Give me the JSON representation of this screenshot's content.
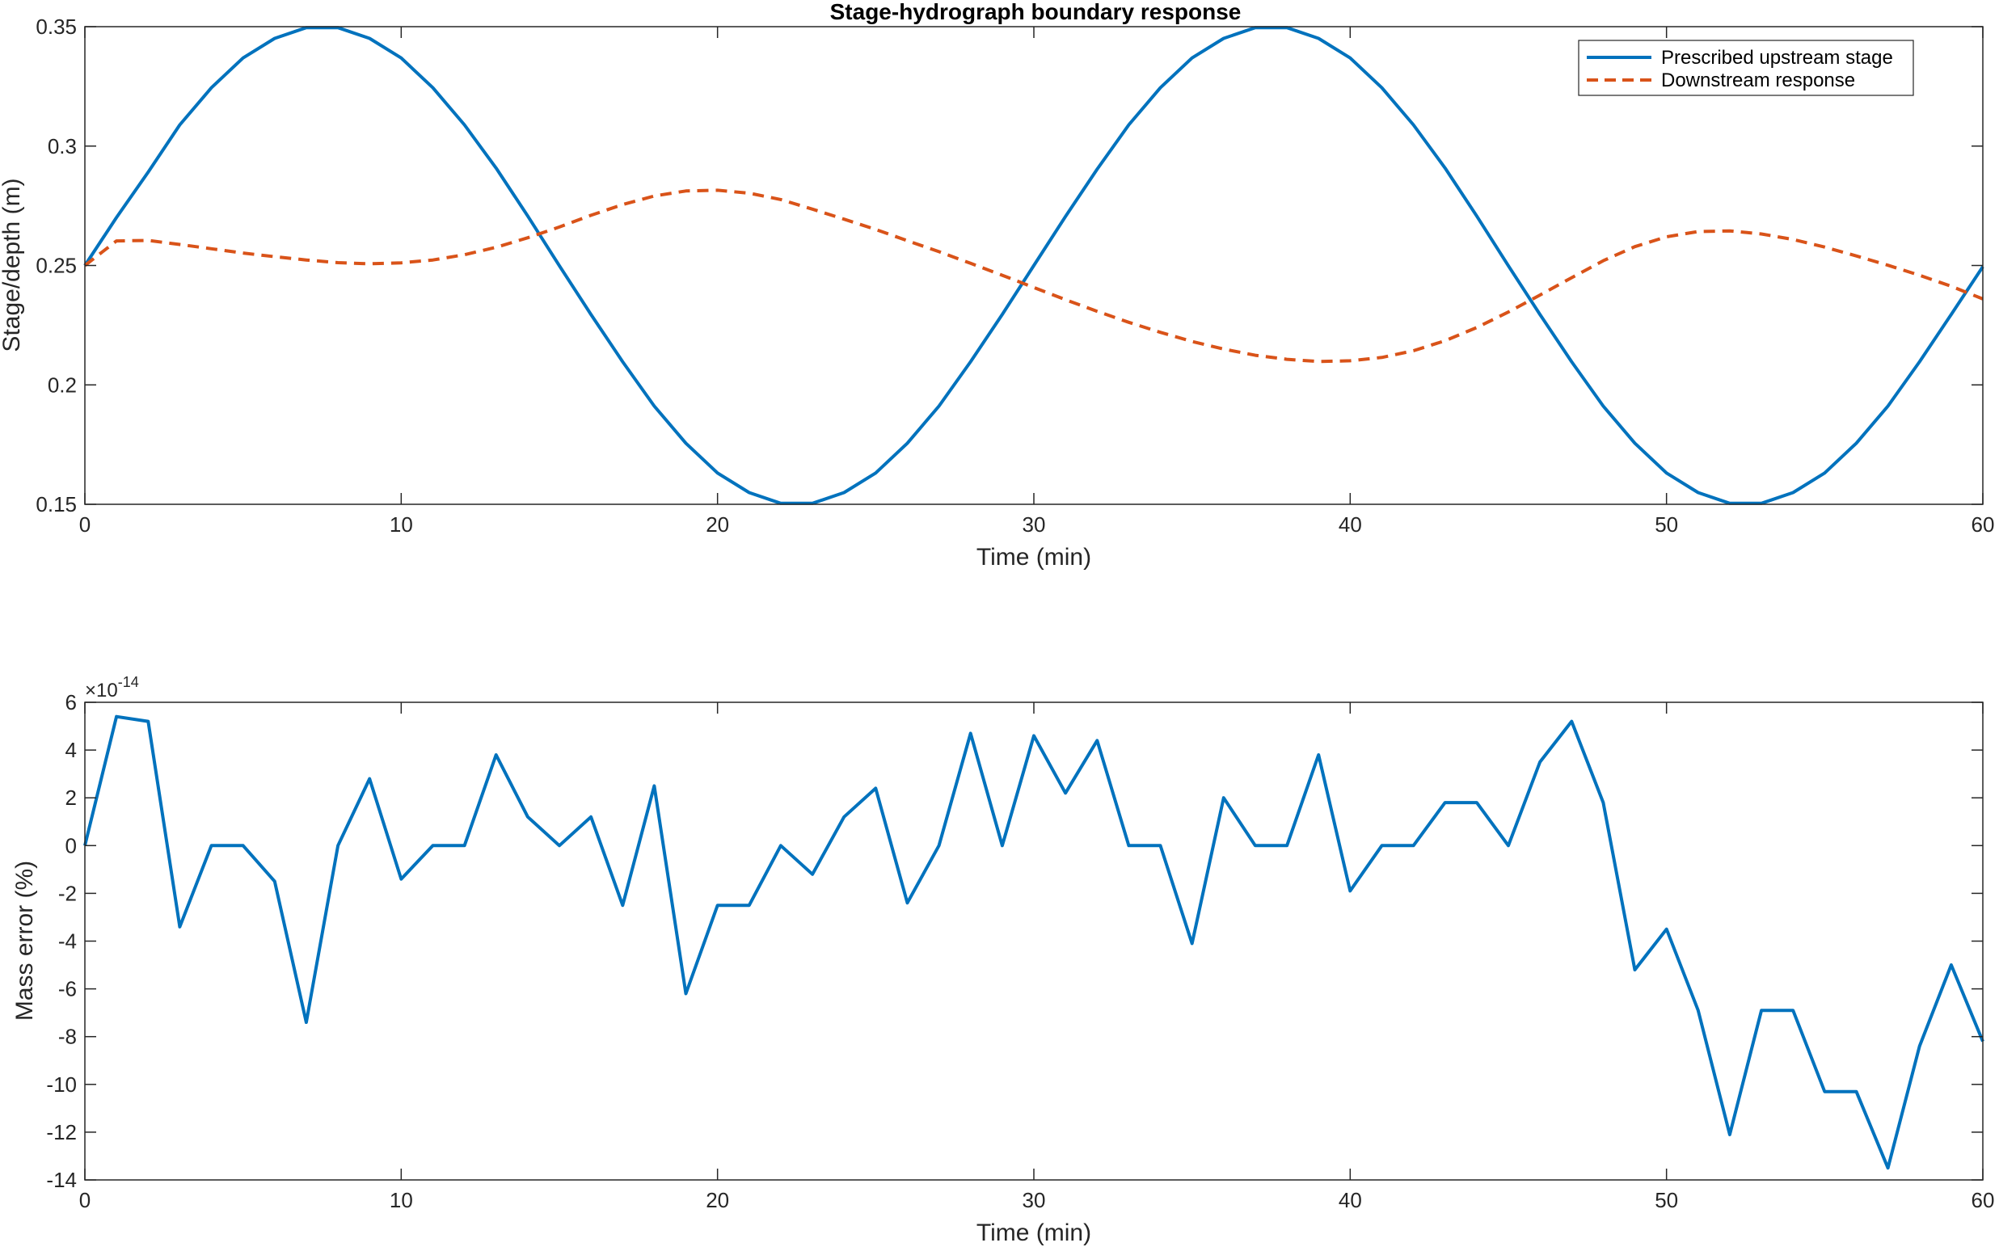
{
  "chart_data": [
    {
      "type": "line",
      "title": "Stage-hydrograph boundary response",
      "xlabel": "Time (min)",
      "ylabel": "Stage/depth (m)",
      "xlim": [
        0,
        60
      ],
      "ylim": [
        0.15,
        0.35
      ],
      "xticks": [
        "0",
        "10",
        "20",
        "30",
        "40",
        "50",
        "60"
      ],
      "yticks": [
        "0.15",
        "0.2",
        "0.25",
        "0.3",
        "0.35"
      ],
      "grid": false,
      "legend_position": "top-right",
      "x": [
        0,
        1,
        2,
        3,
        4,
        5,
        6,
        7,
        8,
        9,
        10,
        11,
        12,
        13,
        14,
        15,
        16,
        17,
        18,
        19,
        20,
        21,
        22,
        23,
        24,
        25,
        26,
        27,
        28,
        29,
        30,
        31,
        32,
        33,
        34,
        35,
        36,
        37,
        38,
        39,
        40,
        41,
        42,
        43,
        44,
        45,
        46,
        47,
        48,
        49,
        50,
        51,
        52,
        53,
        54,
        55,
        56,
        57,
        58,
        59,
        60
      ],
      "series": [
        {
          "name": "Prescribed upstream stage",
          "color": "#0072BD",
          "style": "solid",
          "values": [
            0.25,
            0.2701,
            0.2891,
            0.3089,
            0.3244,
            0.3369,
            0.3451,
            0.3496,
            0.3496,
            0.3451,
            0.3369,
            0.3244,
            0.3089,
            0.2908,
            0.2707,
            0.2499,
            0.2295,
            0.2097,
            0.1911,
            0.1756,
            0.1631,
            0.1549,
            0.1504,
            0.1504,
            0.1549,
            0.1631,
            0.1756,
            0.1911,
            0.2097,
            0.2295,
            0.25,
            0.2705,
            0.2903,
            0.3089,
            0.3244,
            0.3369,
            0.3451,
            0.3496,
            0.3496,
            0.3451,
            0.3369,
            0.3244,
            0.3089,
            0.2908,
            0.2707,
            0.2499,
            0.2295,
            0.2097,
            0.1911,
            0.1756,
            0.1631,
            0.1549,
            0.1504,
            0.1504,
            0.1549,
            0.1631,
            0.1756,
            0.1911,
            0.2097,
            0.2295,
            0.2495
          ]
        },
        {
          "name": "Downstream response",
          "color": "#D95319",
          "style": "dashed",
          "values": [
            0.25,
            0.2603,
            0.2605,
            0.2588,
            0.257,
            0.2552,
            0.2537,
            0.2523,
            0.2512,
            0.2507,
            0.2511,
            0.2523,
            0.2545,
            0.2576,
            0.2616,
            0.2661,
            0.271,
            0.2755,
            0.2791,
            0.2812,
            0.2815,
            0.2803,
            0.2776,
            0.2736,
            0.2694,
            0.2651,
            0.2604,
            0.2558,
            0.2509,
            0.2459,
            0.2408,
            0.2357,
            0.2308,
            0.2262,
            0.222,
            0.2182,
            0.215,
            0.2124,
            0.2107,
            0.2098,
            0.2101,
            0.2115,
            0.2143,
            0.2185,
            0.224,
            0.2305,
            0.2376,
            0.2449,
            0.252,
            0.2579,
            0.262,
            0.2642,
            0.2645,
            0.2632,
            0.2609,
            0.2577,
            0.254,
            0.2501,
            0.2459,
            0.2413,
            0.236
          ]
        }
      ]
    },
    {
      "type": "line",
      "title": "",
      "xlabel": "Time (min)",
      "ylabel": "Mass error (%)",
      "xlim": [
        0,
        60
      ],
      "ylim": [
        -14,
        6
      ],
      "y_scale_label": "×10",
      "y_scale_exponent": "-14",
      "xticks": [
        "0",
        "10",
        "20",
        "30",
        "40",
        "50",
        "60"
      ],
      "yticks": [
        "-14",
        "-12",
        "-10",
        "-8",
        "-6",
        "-4",
        "-2",
        "0",
        "2",
        "4",
        "6"
      ],
      "grid": false,
      "x": [
        0,
        1,
        2,
        3,
        4,
        5,
        6,
        7,
        8,
        9,
        10,
        11,
        12,
        13,
        14,
        15,
        16,
        17,
        18,
        19,
        20,
        21,
        22,
        23,
        24,
        25,
        26,
        27,
        28,
        29,
        30,
        31,
        32,
        33,
        34,
        35,
        36,
        37,
        38,
        39,
        40,
        41,
        42,
        43,
        44,
        45,
        46,
        47,
        48,
        49,
        50,
        51,
        52,
        53,
        54,
        55,
        56,
        57,
        58,
        59,
        60
      ],
      "series": [
        {
          "color": "#0072BD",
          "style": "solid",
          "values": [
            0,
            5.4,
            5.2,
            -3.4,
            0,
            0,
            -1.5,
            -7.4,
            0,
            2.8,
            -1.4,
            0,
            0,
            3.8,
            1.2,
            0,
            1.2,
            -2.5,
            2.5,
            -6.2,
            -2.5,
            -2.5,
            0,
            -1.2,
            1.2,
            2.4,
            -2.4,
            0,
            4.7,
            0,
            4.6,
            2.2,
            4.4,
            0,
            0,
            -4.1,
            2,
            0,
            0,
            3.8,
            -1.9,
            0,
            0,
            1.8,
            1.8,
            0,
            3.5,
            5.2,
            1.8,
            -5.2,
            -3.5,
            -6.9,
            -12.1,
            -6.9,
            -6.9,
            -10.3,
            -10.3,
            -13.5,
            -8.4,
            -5.0,
            -8.2
          ]
        }
      ]
    }
  ]
}
